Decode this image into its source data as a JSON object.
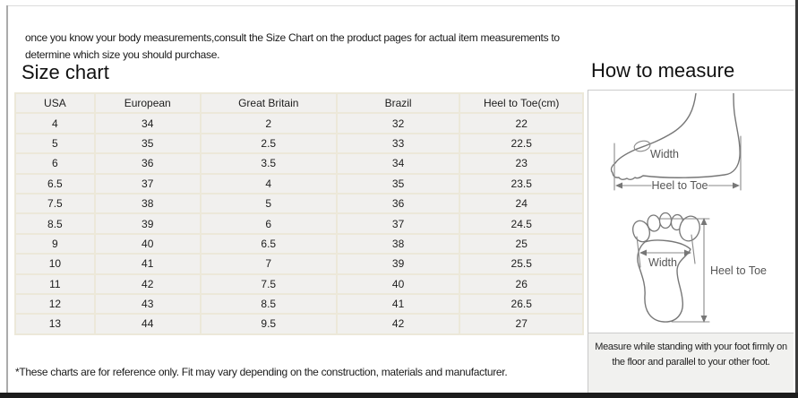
{
  "intro": "once you know your body measurements,consult the Size Chart on the product pages for actual item measurements to determine which size you should purchase.",
  "size_chart": {
    "title": "Size chart",
    "columns": [
      "USA",
      "European",
      "Great Britain",
      "Brazil",
      "Heel to Toe(cm)"
    ],
    "rows": [
      [
        "4",
        "34",
        "2",
        "32",
        "22"
      ],
      [
        "5",
        "35",
        "2.5",
        "33",
        "22.5"
      ],
      [
        "6",
        "36",
        "3.5",
        "34",
        "23"
      ],
      [
        "6.5",
        "37",
        "4",
        "35",
        "23.5"
      ],
      [
        "7.5",
        "38",
        "5",
        "36",
        "24"
      ],
      [
        "8.5",
        "39",
        "6",
        "37",
        "24.5"
      ],
      [
        "9",
        "40",
        "6.5",
        "38",
        "25"
      ],
      [
        "10",
        "41",
        "7",
        "39",
        "25.5"
      ],
      [
        "11",
        "42",
        "7.5",
        "40",
        "26"
      ],
      [
        "12",
        "43",
        "8.5",
        "41",
        "26.5"
      ],
      [
        "13",
        "44",
        "9.5",
        "42",
        "27"
      ]
    ],
    "footnote": "*These charts are for reference only. Fit may vary depending on the construction, materials and manufacturer."
  },
  "how_to_measure": {
    "title": "How to measure",
    "side_diagram": {
      "width_label": "Width",
      "length_label": "Heel to Toe"
    },
    "sole_diagram": {
      "width_label": "Width",
      "length_label": "Heel to Toe"
    },
    "note": "Measure while standing with your foot firmly on the floor and parallel to your other foot."
  },
  "colors": {
    "table_cell_bg": "#f1f0ee",
    "table_border": "#ece8d9",
    "table_outer_border": "#d5d1c2",
    "divider": "#c9c9c9",
    "diagram_stroke": "#777777",
    "diagram_label": "#555555",
    "note_bg": "#f1f1ef",
    "frame_right": "#3a3a3a",
    "frame_bottom": "#1c1c1c"
  }
}
